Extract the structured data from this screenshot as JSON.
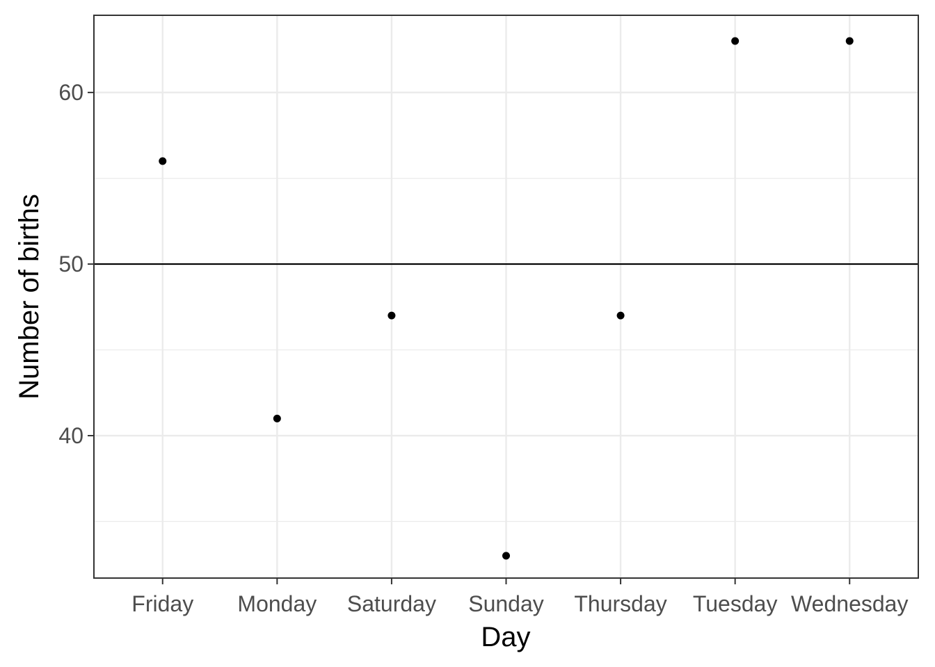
{
  "chart_data": {
    "type": "scatter",
    "title": "",
    "xlabel": "Day",
    "ylabel": "Number of births",
    "categories": [
      "Friday",
      "Monday",
      "Saturday",
      "Sunday",
      "Thursday",
      "Tuesday",
      "Wednesday"
    ],
    "values": [
      56,
      41,
      47,
      33,
      47,
      63,
      63
    ],
    "ylim": [
      31.7,
      64.5
    ],
    "y_ticks": [
      40,
      50,
      60
    ],
    "y_tick_labels": [
      "40",
      "50",
      "60"
    ],
    "y_minor_ticks": [
      35,
      45,
      55
    ],
    "reference_line": {
      "y": 50,
      "color": "#000000"
    },
    "grid": true,
    "legend": "none",
    "point_color": "#000000",
    "grid_color": "#ebebeb",
    "panel_border_color": "#333333"
  }
}
